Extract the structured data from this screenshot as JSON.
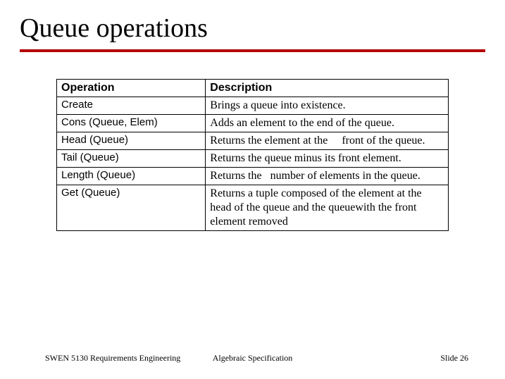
{
  "title": "Queue operations",
  "rule_color": "#b30000",
  "table": {
    "headers": {
      "op": "Operation",
      "desc": "Description"
    },
    "rows": [
      {
        "op": "Create",
        "desc": "Brings a queue into existence."
      },
      {
        "op": "Cons (Queue, Elem)",
        "desc": "Adds an element to the end of the queue."
      },
      {
        "op": "Head (Queue)",
        "desc": "Returns the element at the     front of the queue."
      },
      {
        "op": "Tail (Queue)",
        "desc": "Returns the queue minus its front element."
      },
      {
        "op": "Length (Queue)",
        "desc": "Returns the   number of elements in the queue."
      },
      {
        "op": "Get (Queue)",
        "desc": "Returns a tuple composed of the element at the head of the queue and the queuewith the front element removed"
      }
    ]
  },
  "footer": {
    "left": "SWEN 5130   Requirements Engineering",
    "center": "Algebraic Specification",
    "right": "Slide  26"
  }
}
